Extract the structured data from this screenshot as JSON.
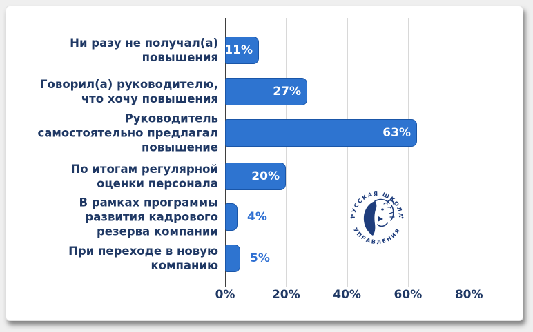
{
  "chart_data": {
    "type": "bar",
    "orientation": "horizontal",
    "title": "",
    "xlabel": "",
    "ylabel": "",
    "categories": [
      "Ни разу не получал(а)\nповышения",
      "Говорил(а) руководителю,\nчто хочу повышения",
      "Руководитель\nсамостоятельно предлагал\nповышение",
      "По итогам регулярной\nоценки персонала",
      "В рамках программы\nразвития кадрового\nрезерва компании",
      "При переходе в новую\nкомпанию"
    ],
    "values": [
      11,
      27,
      63,
      20,
      4,
      5
    ],
    "value_labels": [
      "11%",
      "27%",
      "63%",
      "20%",
      "4%",
      "5%"
    ],
    "x_ticks": [
      0,
      20,
      40,
      60,
      80
    ],
    "x_tick_labels": [
      "0%",
      "20%",
      "40%",
      "60%",
      "80%"
    ],
    "xlim": [
      0,
      93
    ],
    "grid": true,
    "legend": false,
    "colors": {
      "bar_fill": "#2e74d0",
      "bar_border": "#1a56a8",
      "category_text": "#1f3864",
      "value_inside": "#ffffff",
      "value_outside": "#2e6fd2",
      "gridline": "#d8d8d8",
      "axis_line": "#3f3f3f"
    }
  },
  "logo": {
    "top_text": "РУССКАЯ ШКОЛА",
    "bottom_text": "УПРАВЛЕНИЯ",
    "color": "#1f3d7c"
  }
}
